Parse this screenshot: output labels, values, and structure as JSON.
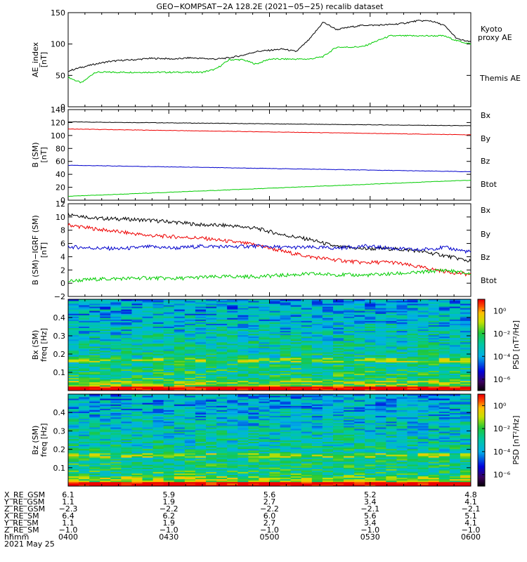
{
  "title": "GEO−KOMPSAT−2A 128.2E (2021−05−25) recalib dataset",
  "colors": {
    "black": "#000000",
    "green": "#00cc00",
    "red": "#ee0000",
    "blue": "#0000cc"
  },
  "chart_data": [
    {
      "type": "line",
      "ylabel": [
        "AE_index",
        "[nT]"
      ],
      "ylim": [
        0,
        150
      ],
      "yticks": [
        "0",
        "50",
        "100",
        "150"
      ],
      "ytick_values": [
        0,
        50,
        100,
        150
      ],
      "x": [
        0,
        4,
        8,
        12,
        16,
        20,
        24,
        28,
        32,
        36,
        40,
        44,
        48,
        52,
        56,
        60,
        64,
        68,
        72,
        76,
        80,
        84,
        88,
        92,
        96,
        100,
        104,
        108,
        112,
        116,
        120
      ],
      "series": [
        {
          "name": "Kyoto proxy AE",
          "color": "green",
          "values": [
            47,
            38,
            55,
            55,
            55,
            55,
            55,
            55,
            55,
            55,
            55,
            60,
            75,
            75,
            68,
            76,
            76,
            76,
            76,
            80,
            95,
            95,
            96,
            105,
            113,
            113,
            113,
            113,
            113,
            105,
            100
          ]
        },
        {
          "name": "Themis AE",
          "color": "black",
          "values": [
            57,
            63,
            68,
            72,
            74,
            75,
            77,
            77,
            76,
            78,
            77,
            76,
            78,
            82,
            88,
            90,
            92,
            88,
            108,
            135,
            123,
            127,
            130,
            130,
            131,
            133,
            137,
            137,
            130,
            108,
            103
          ]
        }
      ],
      "legend": [
        "Kyoto",
        "proxy AE",
        "Themis AE"
      ]
    },
    {
      "type": "line",
      "ylabel": [
        "B (SM)",
        "[nT]"
      ],
      "ylim": [
        0,
        140
      ],
      "yticks": [
        "0",
        "20",
        "40",
        "60",
        "80",
        "100",
        "120",
        "140"
      ],
      "ytick_values": [
        0,
        20,
        40,
        60,
        80,
        100,
        120,
        140
      ],
      "x": [
        0,
        120
      ],
      "series": [
        {
          "name": "Bx",
          "color": "black",
          "values": [
            121,
            115
          ]
        },
        {
          "name": "By",
          "color": "red",
          "values": [
            110,
            101
          ]
        },
        {
          "name": "Bz",
          "color": "blue",
          "values": [
            54,
            44
          ]
        },
        {
          "name": "Btot",
          "color": "green",
          "values": [
            6,
            31
          ]
        }
      ],
      "legend": [
        "Bx",
        "By",
        "Bz",
        "Btot"
      ]
    },
    {
      "type": "line",
      "ylabel": [
        "B (SM)−IGRF (SM)",
        "[nT]"
      ],
      "ylim": [
        -2,
        12
      ],
      "yticks": [
        "−2",
        "0",
        "2",
        "4",
        "6",
        "8",
        "10",
        "12"
      ],
      "ytick_values": [
        -2,
        0,
        2,
        4,
        6,
        8,
        10,
        12
      ],
      "x": [
        0,
        8,
        16,
        24,
        32,
        40,
        48,
        56,
        64,
        72,
        80,
        88,
        96,
        104,
        112,
        120
      ],
      "series": [
        {
          "name": "Bx",
          "color": "black",
          "values": [
            10.5,
            9.8,
            9.7,
            9.5,
            9.2,
            8.8,
            8.7,
            8.3,
            7.3,
            6.6,
            5.5,
            5.2,
            5.2,
            4.9,
            4.2,
            3.3
          ]
        },
        {
          "name": "By",
          "color": "red",
          "values": [
            8.8,
            8.2,
            7.7,
            7.2,
            7.0,
            6.8,
            6.3,
            5.8,
            4.8,
            4.0,
            3.5,
            3.1,
            3.2,
            2.5,
            1.8,
            1.3
          ]
        },
        {
          "name": "Bz",
          "color": "blue",
          "values": [
            5.5,
            5.3,
            5.2,
            5.5,
            5.3,
            5.6,
            5.5,
            5.6,
            5.4,
            5.4,
            5.3,
            5.6,
            5.3,
            5.0,
            5.4,
            4.7
          ]
        },
        {
          "name": "Btot",
          "color": "green",
          "values": [
            0.3,
            0.6,
            0.7,
            0.8,
            0.7,
            0.9,
            1.0,
            1.0,
            1.2,
            1.4,
            1.3,
            1.2,
            1.4,
            1.6,
            2.0,
            1.4
          ]
        }
      ],
      "legend": [
        "Bx",
        "By",
        "Bz",
        "Btot"
      ]
    },
    {
      "type": "heatmap",
      "ylabel": [
        "Bx (SM)",
        "freq [Hz]"
      ],
      "ylim": [
        0,
        0.5
      ],
      "yticks": [
        "0.1",
        "0.2",
        "0.3",
        "0.4"
      ],
      "ytick_values": [
        0.1,
        0.2,
        0.3,
        0.4
      ],
      "colorbar": {
        "label": "PSD [nT²/Hz]",
        "ticks": [
          "10⁰",
          "10⁻²",
          "10⁻⁴",
          "10⁻⁶"
        ],
        "log_values": [
          0,
          -2,
          -4,
          -6
        ],
        "range": [
          -7,
          1
        ]
      }
    },
    {
      "type": "heatmap",
      "ylabel": [
        "Bz (SM)",
        "freq [Hz]"
      ],
      "ylim": [
        0,
        0.5
      ],
      "yticks": [
        "0.1",
        "0.2",
        "0.3",
        "0.4"
      ],
      "ytick_values": [
        0.1,
        0.2,
        0.3,
        0.4
      ],
      "colorbar": {
        "label": "PSD [nT²/Hz]",
        "ticks": [
          "10⁰",
          "10⁻²",
          "10⁻⁴",
          "10⁻⁶"
        ],
        "log_values": [
          0,
          -2,
          -4,
          -6
        ],
        "range": [
          -7,
          1
        ]
      }
    }
  ],
  "ephemeris": {
    "row_labels": [
      "X_RE_GSM",
      "Y_RE_GSM",
      "Z_RE_GSM",
      "X_RE_SM",
      "Y_RE_SM",
      "Z_RE_SM",
      "hhmm"
    ],
    "columns": [
      [
        "6.1",
        "1.1",
        "−2.3",
        "6.4",
        "1.1",
        "−1.0",
        "0400"
      ],
      [
        "5.9",
        "1.9",
        "−2.2",
        "6.2",
        "1.9",
        "−1.0",
        "0430"
      ],
      [
        "5.6",
        "2.7",
        "−2.2",
        "6.0",
        "2.7",
        "−1.0",
        "0500"
      ],
      [
        "5.2",
        "3.4",
        "−2.1",
        "5.6",
        "3.4",
        "−1.0",
        "0530"
      ],
      [
        "4.8",
        "4.1",
        "−2.1",
        "5.1",
        "4.1",
        "−1.0",
        "0600"
      ]
    ],
    "date": "2021 May 25"
  }
}
